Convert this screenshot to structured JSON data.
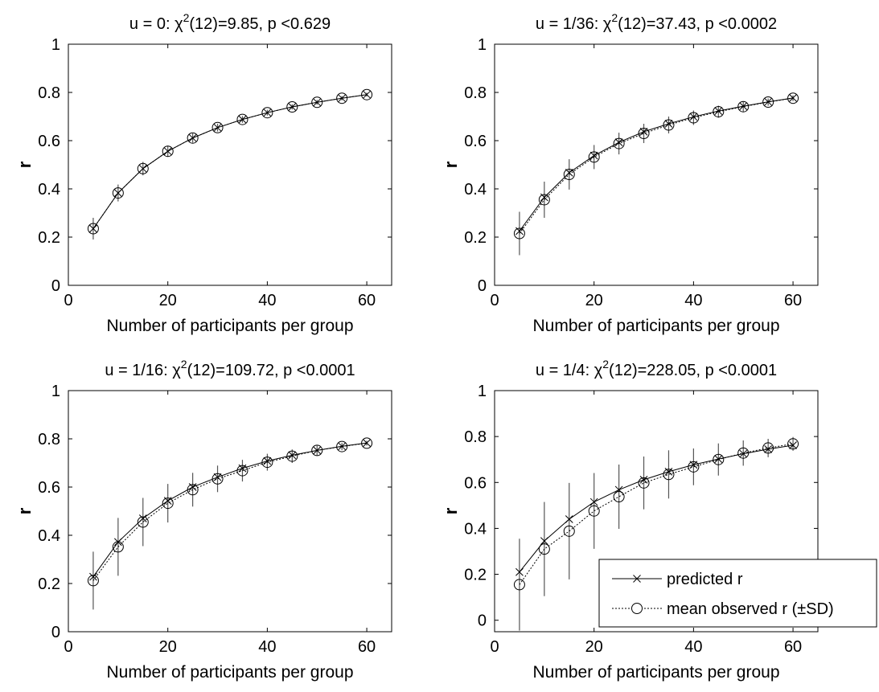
{
  "figure": {
    "legend": {
      "predicted_label": "predicted r",
      "observed_label": "mean observed r (±SD)",
      "predicted_marker": "x-cross",
      "observed_marker": "open-circle",
      "predicted_line_style": "solid",
      "observed_line_style": "dotted"
    },
    "colors": {
      "line": "#000000",
      "error_bar": "#555555",
      "marker": "#000000",
      "background": "#ffffff"
    }
  },
  "chart_data": [
    {
      "type": "line",
      "title": {
        "prefix": "u = 0: ",
        "chi": "χ",
        "sup": "2",
        "suffix": "(12)=9.85, p <0.629"
      },
      "xlabel": "Number of participants per group",
      "ylabel": "r",
      "xlim": [
        0,
        65
      ],
      "ylim": [
        0,
        1
      ],
      "xticks": [
        0,
        20,
        40,
        60
      ],
      "yticks": [
        0,
        0.2,
        0.4,
        0.6,
        0.8,
        1
      ],
      "x": [
        5,
        10,
        15,
        20,
        25,
        30,
        35,
        40,
        45,
        50,
        55,
        60
      ],
      "series": [
        {
          "name": "predicted r",
          "values": [
            0.235,
            0.383,
            0.484,
            0.556,
            0.611,
            0.654,
            0.688,
            0.716,
            0.74,
            0.759,
            0.776,
            0.791
          ]
        },
        {
          "name": "mean observed r (±SD)",
          "values": [
            0.235,
            0.383,
            0.484,
            0.556,
            0.611,
            0.654,
            0.688,
            0.716,
            0.74,
            0.759,
            0.776,
            0.791
          ],
          "sd": [
            0.045,
            0.035,
            0.028,
            0.023,
            0.019,
            0.016,
            0.014,
            0.012,
            0.011,
            0.01,
            0.009,
            0.008
          ]
        }
      ],
      "grid": false,
      "legend": "none"
    },
    {
      "type": "line",
      "title": {
        "prefix": "u = 1/36: ",
        "chi": "χ",
        "sup": "2",
        "suffix": "(12)=37.43, p <0.0002"
      },
      "xlabel": "Number of participants per group",
      "ylabel": "r",
      "xlim": [
        0,
        65
      ],
      "ylim": [
        0,
        1
      ],
      "xticks": [
        0,
        20,
        40,
        60
      ],
      "yticks": [
        0,
        0.2,
        0.4,
        0.6,
        0.8,
        1
      ],
      "x": [
        5,
        10,
        15,
        20,
        25,
        30,
        35,
        40,
        45,
        50,
        55,
        60
      ],
      "series": [
        {
          "name": "predicted r",
          "values": [
            0.225,
            0.365,
            0.467,
            0.538,
            0.593,
            0.637,
            0.67,
            0.699,
            0.723,
            0.743,
            0.761,
            0.777
          ]
        },
        {
          "name": "mean observed r (±SD)",
          "values": [
            0.215,
            0.355,
            0.46,
            0.532,
            0.588,
            0.63,
            0.665,
            0.695,
            0.72,
            0.741,
            0.76,
            0.776
          ],
          "sd": [
            0.09,
            0.075,
            0.063,
            0.05,
            0.045,
            0.04,
            0.035,
            0.03,
            0.025,
            0.02,
            0.015,
            0.012
          ]
        }
      ],
      "grid": false,
      "legend": "none"
    },
    {
      "type": "line",
      "title": {
        "prefix": "u = 1/16: ",
        "chi": "χ",
        "sup": "2",
        "suffix": "(12)=109.72, p <0.0001"
      },
      "xlabel": "Number of participants per group",
      "ylabel": "r",
      "xlim": [
        0,
        65
      ],
      "ylim": [
        0,
        1
      ],
      "xticks": [
        0,
        20,
        40,
        60
      ],
      "yticks": [
        0,
        0.2,
        0.4,
        0.6,
        0.8,
        1
      ],
      "x": [
        5,
        10,
        15,
        20,
        25,
        30,
        35,
        40,
        45,
        50,
        55,
        60
      ],
      "series": [
        {
          "name": "predicted r",
          "values": [
            0.228,
            0.372,
            0.47,
            0.543,
            0.6,
            0.641,
            0.678,
            0.708,
            0.732,
            0.752,
            0.769,
            0.783
          ]
        },
        {
          "name": "mean observed r (±SD)",
          "values": [
            0.212,
            0.352,
            0.455,
            0.533,
            0.589,
            0.634,
            0.668,
            0.703,
            0.728,
            0.752,
            0.768,
            0.782
          ],
          "sd": [
            0.12,
            0.12,
            0.1,
            0.08,
            0.07,
            0.055,
            0.045,
            0.035,
            0.028,
            0.02,
            0.015,
            0.01
          ]
        }
      ],
      "grid": false,
      "legend": "none"
    },
    {
      "type": "line",
      "title": {
        "prefix": "u = 1/4: ",
        "chi": "χ",
        "sup": "2",
        "suffix": "(12)=228.05, p <0.0001"
      },
      "xlabel": "Number of participants per group",
      "ylabel": "r",
      "xlim": [
        0,
        65
      ],
      "ylim": [
        -0.05,
        1
      ],
      "xticks": [
        0,
        20,
        40,
        60
      ],
      "yticks": [
        0,
        0.2,
        0.4,
        0.6,
        0.8,
        1
      ],
      "x": [
        5,
        10,
        15,
        20,
        25,
        30,
        35,
        40,
        45,
        50,
        55,
        60
      ],
      "series": [
        {
          "name": "predicted r",
          "values": [
            0.21,
            0.345,
            0.44,
            0.515,
            0.568,
            0.612,
            0.647,
            0.677,
            0.702,
            0.725,
            0.745,
            0.762
          ]
        },
        {
          "name": "mean observed r (±SD)",
          "values": [
            0.155,
            0.31,
            0.388,
            0.476,
            0.538,
            0.598,
            0.635,
            0.668,
            0.7,
            0.728,
            0.75,
            0.768
          ],
          "sd": [
            0.2,
            0.205,
            0.21,
            0.165,
            0.14,
            0.115,
            0.105,
            0.08,
            0.07,
            0.055,
            0.04,
            0.03
          ]
        }
      ],
      "grid": false,
      "legend": "bottom-right"
    }
  ]
}
